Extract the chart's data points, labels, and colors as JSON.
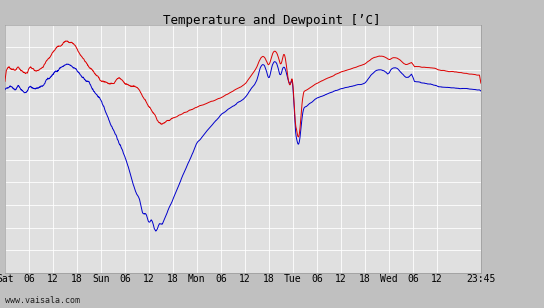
{
  "title": "Temperature and Dewpoint [’C]",
  "bg_color": "#c0c0c0",
  "plot_bg_color": "#e0e0e0",
  "grid_color": "#ffffff",
  "temp_color": "#dd0000",
  "dewpoint_color": "#0000cc",
  "ylim": [
    -16,
    6
  ],
  "yticks": [
    -16,
    -14,
    -12,
    -10,
    -8,
    -6,
    -4,
    -2,
    0,
    2,
    4,
    6
  ],
  "xtick_labels": [
    "Sat",
    "06",
    "12",
    "18",
    "Sun",
    "06",
    "12",
    "18",
    "Mon",
    "06",
    "12",
    "18",
    "Tue",
    "06",
    "12",
    "18",
    "Wed",
    "06",
    "12",
    "23:45"
  ],
  "xtick_positions": [
    0,
    6,
    12,
    18,
    24,
    30,
    36,
    42,
    48,
    54,
    60,
    66,
    72,
    78,
    84,
    90,
    96,
    102,
    108,
    119
  ],
  "total_hours": 119,
  "watermark": "www.vaisala.com",
  "title_fontsize": 9,
  "tick_fontsize": 7,
  "watermark_fontsize": 6
}
